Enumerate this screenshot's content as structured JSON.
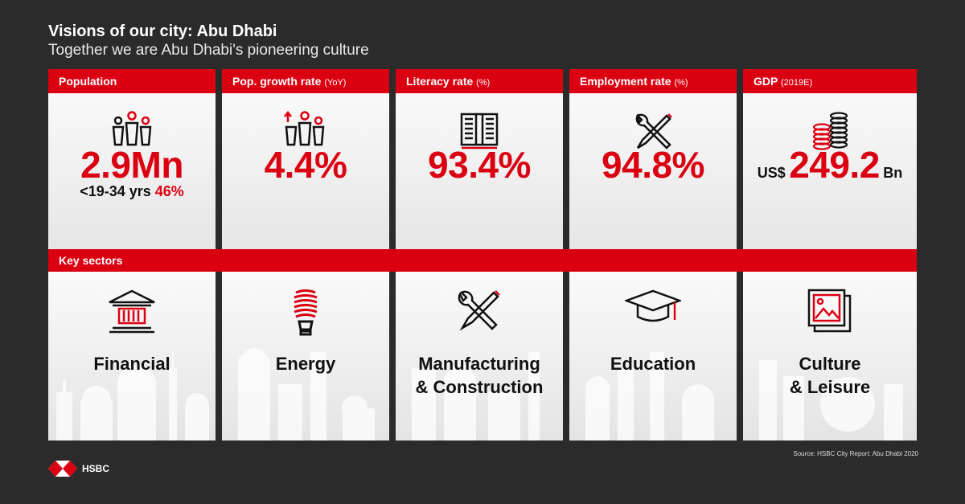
{
  "header": {
    "title": "Visions of our city: Abu Dhabi",
    "subtitle": "Together we are Abu Dhabi's pioneering culture"
  },
  "stats": [
    {
      "label": "Population",
      "unit": "",
      "value": "2.9Mn",
      "sub_prefix": "<19-34 yrs ",
      "sub_highlight": "46%",
      "icon": "people-icon"
    },
    {
      "label": "Pop. growth rate ",
      "unit": "(YoY)",
      "value": "4.4%",
      "icon": "population-growth-icon"
    },
    {
      "label": "Literacy rate ",
      "unit": "(%)",
      "value": "93.4%",
      "icon": "book-icon"
    },
    {
      "label": "Employment rate ",
      "unit": "(%)",
      "value": "94.8%",
      "icon": "tools-icon"
    },
    {
      "label": "GDP ",
      "unit": "(2019E)",
      "currency": "US$",
      "value": "249.2",
      "suffix": "Bn",
      "icon": "coins-icon"
    }
  ],
  "sectors": {
    "title": "Key sectors",
    "items": [
      {
        "line1": "Financial",
        "line2": "",
        "icon": "bank-icon"
      },
      {
        "line1": "Energy",
        "line2": "",
        "icon": "lightbulb-icon"
      },
      {
        "line1": "Manufacturing",
        "line2": "& Construction",
        "icon": "tools-icon"
      },
      {
        "line1": "Education",
        "line2": "",
        "icon": "graduation-cap-icon"
      },
      {
        "line1": "Culture",
        "line2": "& Leisure",
        "icon": "picture-frame-icon"
      }
    ]
  },
  "footer": {
    "source": "Source: HSBC City Report: Abu Dhabi 2020",
    "brand": "HSBC"
  },
  "colors": {
    "accent": "#db0011",
    "background": "#2b2b2b",
    "text_dark": "#111111"
  }
}
